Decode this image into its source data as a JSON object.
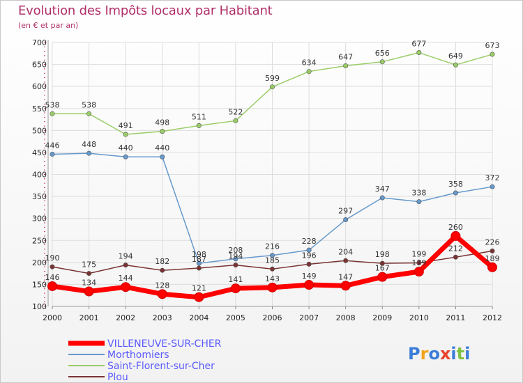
{
  "title": "Evolution des Impôts locaux par Habitant",
  "subtitle": "(en € et par an)",
  "logo": {
    "text": "Proxiti",
    "letters": [
      "P",
      "r",
      "o",
      "x",
      "i",
      "t",
      "i"
    ],
    "colors": [
      "#3b7dd8",
      "#f2a31b",
      "#3b7dd8",
      "#e8422c",
      "#3b7dd8",
      "#7cc243",
      "#3b7dd8"
    ]
  },
  "chart_data": {
    "type": "line",
    "categories": [
      "2000",
      "2001",
      "2002",
      "2003",
      "2004",
      "2005",
      "2006",
      "2007",
      "2008",
      "2009",
      "2010",
      "2011",
      "2012"
    ],
    "ylim": [
      100,
      700
    ],
    "yticks": [
      "100",
      "150",
      "200",
      "250",
      "300",
      "350",
      "400",
      "450",
      "500",
      "550",
      "600",
      "650",
      "700"
    ],
    "grid": true,
    "legend_position": "bottom-left",
    "series": [
      {
        "name": "VILLENEUVE-SUR-CHER",
        "color": "#ff0000",
        "emphasis": true,
        "values": [
          146,
          134,
          144,
          128,
          121,
          141,
          143,
          149,
          147,
          167,
          179,
          260,
          189
        ],
        "labels": [
          "146",
          "134",
          "144",
          "128",
          "121",
          "141",
          "143",
          "149",
          "147",
          "167",
          "179",
          "260",
          "189"
        ]
      },
      {
        "name": "Morthomiers",
        "color": "#6699cc",
        "emphasis": false,
        "values": [
          446,
          448,
          440,
          440,
          198,
          208,
          216,
          228,
          297,
          347,
          338,
          358,
          372
        ],
        "labels": [
          "446",
          "448",
          "440",
          "440",
          "198",
          "208",
          "216",
          "228",
          "297",
          "347",
          "338",
          "358",
          "372"
        ]
      },
      {
        "name": "Saint-Florent-sur-Cher",
        "color": "#99cc66",
        "emphasis": false,
        "values": [
          538,
          538,
          491,
          498,
          511,
          522,
          599,
          634,
          647,
          656,
          677,
          649,
          673
        ],
        "labels": [
          "538",
          "538",
          "491",
          "498",
          "511",
          "522",
          "599",
          "634",
          "647",
          "656",
          "677",
          "649",
          "673"
        ]
      },
      {
        "name": "Plou",
        "color": "#7a3333",
        "emphasis": false,
        "values": [
          190,
          175,
          194,
          182,
          187,
          194,
          185,
          196,
          204,
          198,
          199,
          212,
          226
        ],
        "labels": [
          "190",
          "175",
          "194",
          "182",
          "187",
          "194",
          "185",
          "196",
          "204",
          "198",
          "199",
          "212",
          "226"
        ]
      }
    ]
  }
}
